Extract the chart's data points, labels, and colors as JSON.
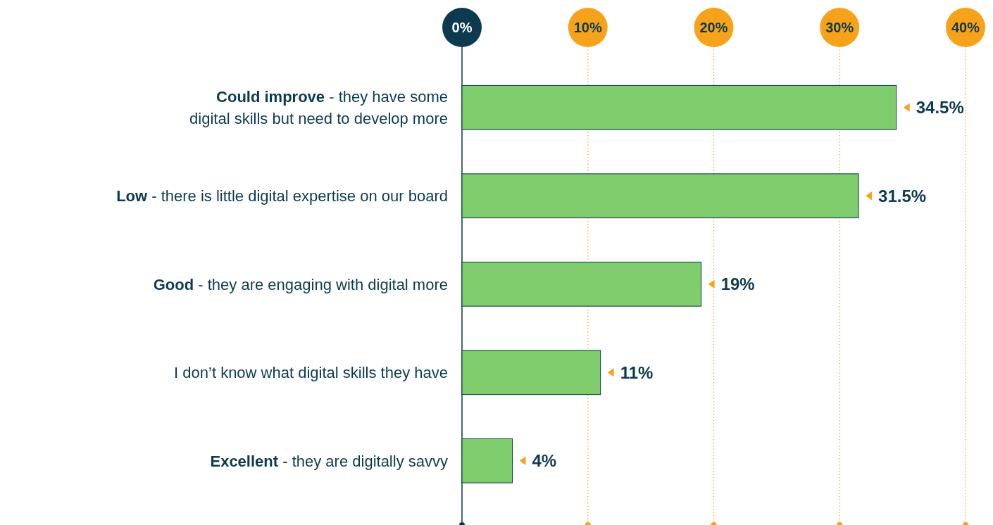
{
  "chart_data": {
    "type": "bar",
    "orientation": "horizontal",
    "categories": [
      "Could improve - they have some digital skills but need to develop more",
      "Low - there is little digital expertise on our board",
      "Good - they are engaging with digital more",
      "I don’t know what digital skills they have",
      "Excellent - they are digitally savvy"
    ],
    "values": [
      34.5,
      31.5,
      19,
      11,
      4
    ],
    "value_labels": [
      "34.5%",
      "31.5%",
      "19%",
      "11%",
      "4%"
    ],
    "color": "#7fcc6c",
    "xlim": [
      0,
      40
    ],
    "xticks": [
      {
        "value": 0,
        "label": "0%"
      },
      {
        "value": 10,
        "label": "10%"
      },
      {
        "value": 20,
        "label": "20%"
      },
      {
        "value": 30,
        "label": "30%"
      },
      {
        "value": 40,
        "label": "40%"
      }
    ],
    "grid": "x"
  }
}
